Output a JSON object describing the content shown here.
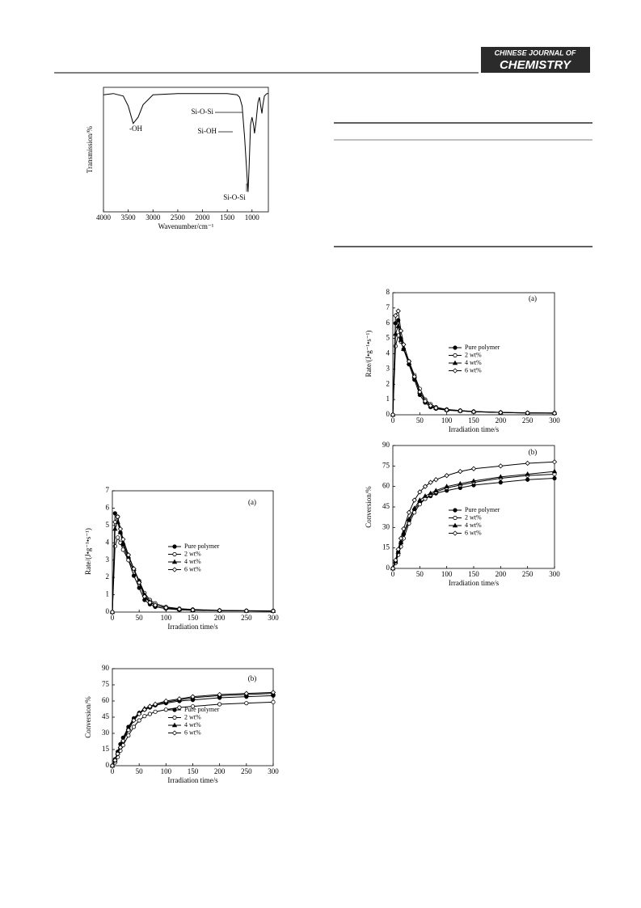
{
  "header": {
    "journal": [
      "CHINESE JOURNAL OF",
      "CHEMISTRY"
    ]
  },
  "chart_data": [
    {
      "type": "line",
      "xlabel": "Wavenumber/cm⁻¹",
      "ylabel": "Transmission/%",
      "xlim": [
        4000,
        670
      ],
      "ylim": [
        0,
        100
      ],
      "xticks": [
        4000,
        3500,
        3000,
        2500,
        2000,
        1500,
        1000
      ],
      "annotations": [
        "-OH",
        "Si-O-Si",
        "Si-OH",
        "Si-O-Si"
      ],
      "x": [
        4000,
        3800,
        3600,
        3500,
        3400,
        3300,
        3200,
        3000,
        2500,
        2000,
        1500,
        1300,
        1250,
        1200,
        1150,
        1100,
        1080,
        1060,
        1030,
        1000,
        970,
        950,
        920,
        880,
        850,
        820,
        800,
        780,
        750,
        700,
        670
      ],
      "series": [
        {
          "color": "#000",
          "values": [
            94,
            95,
            93,
            85,
            71,
            76,
            86,
            94,
            95,
            95,
            95,
            94,
            92,
            85,
            60,
            28,
            16,
            35,
            70,
            76,
            70,
            63,
            72,
            88,
            92,
            84,
            79,
            86,
            93,
            95,
            95
          ]
        }
      ]
    },
    {
      "type": "line",
      "xlabel": "Irradiation time/s",
      "ylabel": "Rate/(J•g⁻¹•s⁻¹)",
      "annotations": [
        "(a)"
      ],
      "xlim": [
        0,
        300
      ],
      "ylim": [
        0,
        7
      ],
      "xticks": [
        0,
        50,
        100,
        150,
        200,
        250,
        300
      ],
      "yticks": [
        0,
        1,
        2,
        3,
        4,
        5,
        6,
        7
      ],
      "x": [
        0,
        5,
        10,
        15,
        20,
        30,
        40,
        50,
        60,
        70,
        80,
        100,
        125,
        150,
        200,
        250,
        300
      ],
      "series": [
        {
          "name": "Pure polymer",
          "color": "#000",
          "marker": "circle-filled",
          "values": [
            0,
            5.7,
            5.5,
            4.6,
            3.9,
            3.0,
            2.1,
            1.4,
            0.7,
            0.45,
            0.3,
            0.2,
            0.13,
            0.1,
            0.08,
            0.07,
            0.06
          ]
        },
        {
          "name": "2 wt%",
          "color": "#000",
          "marker": "circle-open",
          "values": [
            0,
            3.8,
            4.3,
            4.0,
            3.6,
            3.0,
            2.4,
            1.8,
            1.1,
            0.7,
            0.5,
            0.3,
            0.2,
            0.15,
            0.1,
            0.08,
            0.07
          ]
        },
        {
          "name": "4 wt%",
          "color": "#000",
          "marker": "triangle-filled",
          "values": [
            0,
            4.8,
            5.2,
            4.6,
            4.0,
            3.2,
            2.5,
            1.8,
            1.0,
            0.6,
            0.4,
            0.25,
            0.16,
            0.12,
            0.09,
            0.07,
            0.06
          ]
        },
        {
          "name": "6 wt%",
          "color": "#000",
          "marker": "diamond-open",
          "values": [
            0,
            5.2,
            5.5,
            4.8,
            4.2,
            3.3,
            2.5,
            1.7,
            0.9,
            0.55,
            0.4,
            0.25,
            0.17,
            0.12,
            0.09,
            0.07,
            0.06
          ]
        }
      ]
    },
    {
      "type": "line",
      "xlabel": "Irradiation time/s",
      "ylabel": "Conversion/%",
      "annotations": [
        "(b)"
      ],
      "xlim": [
        0,
        300
      ],
      "ylim": [
        0,
        90
      ],
      "xticks": [
        0,
        50,
        100,
        150,
        200,
        250,
        300
      ],
      "yticks": [
        0,
        15,
        30,
        45,
        60,
        75,
        90
      ],
      "x": [
        0,
        5,
        10,
        15,
        20,
        30,
        40,
        50,
        60,
        70,
        80,
        100,
        125,
        150,
        200,
        250,
        300
      ],
      "series": [
        {
          "name": "Pure polymer",
          "color": "#000",
          "marker": "circle-filled",
          "values": [
            0,
            6,
            13,
            20,
            26,
            36,
            44,
            49,
            52,
            54,
            56,
            58,
            60,
            61,
            63,
            64,
            65
          ]
        },
        {
          "name": "2 wt%",
          "color": "#000",
          "marker": "circle-open",
          "values": [
            0,
            3,
            8,
            14,
            19,
            28,
            36,
            42,
            46,
            48,
            50,
            52,
            54,
            55,
            57,
            58,
            59
          ]
        },
        {
          "name": "4 wt%",
          "color": "#000",
          "marker": "triangle-filled",
          "values": [
            0,
            5,
            12,
            18,
            24,
            35,
            43,
            49,
            53,
            55,
            57,
            59,
            61,
            63,
            65,
            66,
            67
          ]
        },
        {
          "name": "6 wt%",
          "color": "#000",
          "marker": "diamond-open",
          "values": [
            0,
            5,
            11,
            17,
            23,
            33,
            42,
            48,
            52,
            55,
            57,
            60,
            62,
            64,
            66,
            67,
            68
          ]
        }
      ]
    },
    {
      "type": "line",
      "xlabel": "Irradiation time/s",
      "ylabel": "Rate/(J•g⁻¹•s⁻¹)",
      "annotations": [
        "(a)"
      ],
      "xlim": [
        0,
        300
      ],
      "ylim": [
        0,
        8
      ],
      "xticks": [
        0,
        50,
        100,
        150,
        200,
        250,
        300
      ],
      "yticks": [
        0,
        1,
        2,
        3,
        4,
        5,
        6,
        7,
        8
      ],
      "x": [
        0,
        5,
        10,
        15,
        20,
        30,
        40,
        50,
        60,
        70,
        80,
        100,
        125,
        150,
        200,
        250,
        300
      ],
      "series": [
        {
          "name": "Pure polymer",
          "color": "#000",
          "marker": "circle-filled",
          "values": [
            0,
            6.0,
            6.2,
            5.0,
            4.3,
            3.3,
            2.3,
            1.3,
            0.8,
            0.5,
            0.4,
            0.3,
            0.25,
            0.2,
            0.15,
            0.12,
            0.1
          ]
        },
        {
          "name": "2 wt%",
          "color": "#000",
          "marker": "circle-open",
          "values": [
            0,
            4.5,
            5.2,
            4.8,
            4.3,
            3.5,
            2.6,
            1.7,
            1.0,
            0.7,
            0.5,
            0.35,
            0.28,
            0.22,
            0.16,
            0.13,
            0.12
          ]
        },
        {
          "name": "4 wt%",
          "color": "#000",
          "marker": "triangle-filled",
          "values": [
            0,
            5.3,
            5.8,
            4.9,
            4.3,
            3.4,
            2.5,
            1.5,
            0.9,
            0.6,
            0.45,
            0.32,
            0.26,
            0.21,
            0.15,
            0.12,
            0.11
          ]
        },
        {
          "name": "6 wt%",
          "color": "#000",
          "marker": "diamond-open",
          "values": [
            0,
            6.5,
            6.8,
            5.5,
            4.6,
            3.5,
            2.5,
            1.5,
            0.9,
            0.6,
            0.45,
            0.32,
            0.26,
            0.2,
            0.15,
            0.12,
            0.1
          ]
        }
      ]
    },
    {
      "type": "line",
      "xlabel": "Irradiation time/s",
      "ylabel": "Conversion/%",
      "annotations": [
        "(b)"
      ],
      "xlim": [
        0,
        300
      ],
      "ylim": [
        0,
        90
      ],
      "xticks": [
        0,
        50,
        100,
        150,
        200,
        250,
        300
      ],
      "yticks": [
        0,
        15,
        30,
        45,
        60,
        75,
        90
      ],
      "x": [
        0,
        5,
        10,
        15,
        20,
        30,
        40,
        50,
        60,
        70,
        80,
        100,
        125,
        150,
        200,
        250,
        300
      ],
      "series": [
        {
          "name": "Pure polymer",
          "color": "#000",
          "marker": "circle-filled",
          "values": [
            0,
            5,
            12,
            19,
            25,
            35,
            43,
            48,
            51,
            53,
            55,
            57,
            59,
            61,
            63,
            65,
            66
          ]
        },
        {
          "name": "2 wt%",
          "color": "#000",
          "marker": "circle-open",
          "values": [
            0,
            4,
            10,
            16,
            22,
            33,
            41,
            47,
            51,
            54,
            56,
            59,
            61,
            63,
            66,
            68,
            69
          ]
        },
        {
          "name": "4 wt%",
          "color": "#000",
          "marker": "triangle-filled",
          "values": [
            0,
            5,
            12,
            19,
            26,
            36,
            44,
            50,
            53,
            55,
            57,
            60,
            62,
            64,
            67,
            69,
            71
          ]
        },
        {
          "name": "6 wt%",
          "color": "#000",
          "marker": "diamond-open",
          "values": [
            0,
            6,
            14,
            22,
            29,
            41,
            50,
            56,
            60,
            63,
            65,
            68,
            71,
            73,
            75,
            77,
            78
          ]
        }
      ]
    }
  ]
}
